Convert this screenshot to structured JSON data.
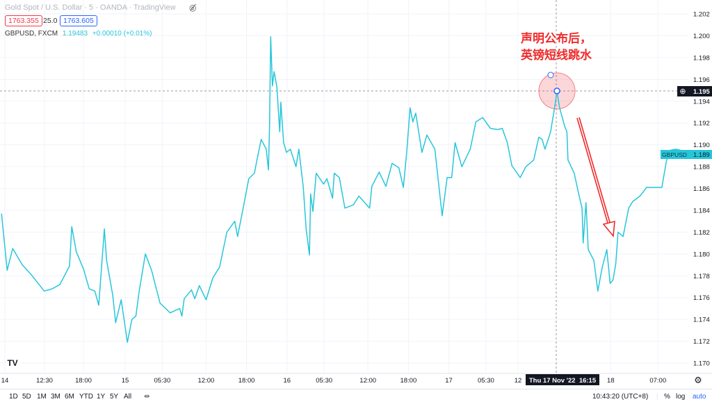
{
  "header": {
    "title": "Gold Spot / U.S. Dollar · 5 · OANDA · TradingView",
    "hide_icon": "eye-crossed-icon",
    "bid": "1763.355",
    "spread": "25.0",
    "ask": "1763.605",
    "symbol": "GBPUSD, FXCM",
    "last": "1.19483",
    "change": "+0.00010 (+0.01%)"
  },
  "annotation": {
    "line1": "声明公布后，",
    "line2": "英镑短线跳水"
  },
  "crosshair": {
    "time_label": "Thu 17 Nov '22  16:15",
    "price_label": "1.195"
  },
  "series_label": {
    "name": "GBPUSD",
    "value": "1.189"
  },
  "colors": {
    "line": "#26c6da",
    "annotation": "#f02a2a",
    "bid": "#f23645",
    "ask": "#2962ff"
  },
  "chart_data": {
    "type": "line",
    "symbol": "GBPUSD",
    "y_ticks": [
      "1.202",
      "1.200",
      "1.198",
      "1.196",
      "1.194",
      "1.192",
      "1.190",
      "1.188",
      "1.186",
      "1.184",
      "1.182",
      "1.180",
      "1.178",
      "1.176",
      "1.174",
      "1.172",
      "1.170"
    ],
    "ylim": [
      1.17,
      1.202
    ],
    "x_ticks": [
      {
        "label": "14",
        "t": "14 00:00"
      },
      {
        "label": "12:30",
        "t": "14 12:30"
      },
      {
        "label": "18:00",
        "t": "14 18:00"
      },
      {
        "label": "15",
        "t": "15 00:00"
      },
      {
        "label": "05:30",
        "t": "15 05:30"
      },
      {
        "label": "12:00",
        "t": "15 12:00"
      },
      {
        "label": "18:00",
        "t": "15 18:00"
      },
      {
        "label": "16",
        "t": "16 00:00"
      },
      {
        "label": "05:30",
        "t": "16 05:30"
      },
      {
        "label": "12:00",
        "t": "16 12:00"
      },
      {
        "label": "18:00",
        "t": "16 18:00"
      },
      {
        "label": "17",
        "t": "17 00:00"
      },
      {
        "label": "05:30",
        "t": "17 05:30"
      },
      {
        "label": "12",
        "t": "17 12:00"
      },
      {
        "label": "18",
        "t": "18 00:00"
      },
      {
        "label": "07:00",
        "t": "18 07:00"
      }
    ],
    "grid": true,
    "points": [
      [
        "14 05:40",
        1.1837
      ],
      [
        "14 06:30",
        1.1785
      ],
      [
        "14 07:20",
        1.1805
      ],
      [
        "14 08:45",
        1.179
      ],
      [
        "14 10:05",
        1.1781
      ],
      [
        "14 12:00",
        1.1766
      ],
      [
        "14 13:10",
        1.1768
      ],
      [
        "14 14:20",
        1.1772
      ],
      [
        "14 15:45",
        1.1789
      ],
      [
        "14 16:05",
        1.1825
      ],
      [
        "14 16:45",
        1.1802
      ],
      [
        "14 17:50",
        1.1786
      ],
      [
        "14 18:40",
        1.1768
      ],
      [
        "14 19:30",
        1.1766
      ],
      [
        "14 20:05",
        1.1753
      ],
      [
        "14 20:55",
        1.1823
      ],
      [
        "14 21:15",
        1.1794
      ],
      [
        "14 22:10",
        1.1762
      ],
      [
        "14 22:35",
        1.1737
      ],
      [
        "14 23:25",
        1.1758
      ],
      [
        "15 00:20",
        1.1719
      ],
      [
        "15 01:00",
        1.174
      ],
      [
        "15 01:35",
        1.1743
      ],
      [
        "15 02:05",
        1.1766
      ],
      [
        "15 03:00",
        1.18
      ],
      [
        "15 03:55",
        1.1785
      ],
      [
        "15 05:10",
        1.1755
      ],
      [
        "15 06:40",
        1.1746
      ],
      [
        "15 08:05",
        1.175
      ],
      [
        "15 08:25",
        1.1743
      ],
      [
        "15 08:45",
        1.1759
      ],
      [
        "15 09:50",
        1.1767
      ],
      [
        "15 10:20",
        1.1759
      ],
      [
        "15 11:00",
        1.1771
      ],
      [
        "15 12:00",
        1.1758
      ],
      [
        "15 13:00",
        1.1778
      ],
      [
        "15 14:00",
        1.1788
      ],
      [
        "15 15:05",
        1.182
      ],
      [
        "15 16:15",
        1.183
      ],
      [
        "15 16:40",
        1.1816
      ],
      [
        "15 17:30",
        1.1842
      ],
      [
        "15 18:20",
        1.1869
      ],
      [
        "15 19:10",
        1.1874
      ],
      [
        "15 19:25",
        1.1882
      ],
      [
        "15 20:10",
        1.1905
      ],
      [
        "15 20:55",
        1.1896
      ],
      [
        "15 21:15",
        1.1877
      ],
      [
        "15 21:25",
        1.1918
      ],
      [
        "15 21:35",
        1.1999
      ],
      [
        "15 21:50",
        1.1954
      ],
      [
        "15 22:05",
        1.1967
      ],
      [
        "15 22:30",
        1.1953
      ],
      [
        "15 22:55",
        1.1912
      ],
      [
        "15 23:05",
        1.1939
      ],
      [
        "15 23:30",
        1.1902
      ],
      [
        "15 23:55",
        1.1893
      ],
      [
        "16 00:30",
        1.1896
      ],
      [
        "16 01:20",
        1.188
      ],
      [
        "16 01:45",
        1.1896
      ],
      [
        "16 02:25",
        1.1861
      ],
      [
        "16 02:50",
        1.1823
      ],
      [
        "16 03:20",
        1.1799
      ],
      [
        "16 03:30",
        1.1855
      ],
      [
        "16 03:50",
        1.1839
      ],
      [
        "16 04:20",
        1.1874
      ],
      [
        "16 05:25",
        1.1864
      ],
      [
        "16 05:55",
        1.1869
      ],
      [
        "16 06:45",
        1.1851
      ],
      [
        "16 07:00",
        1.1874
      ],
      [
        "16 07:45",
        1.187
      ],
      [
        "16 08:35",
        1.1842
      ],
      [
        "16 09:50",
        1.1845
      ],
      [
        "16 10:40",
        1.1853
      ],
      [
        "16 12:15",
        1.1842
      ],
      [
        "16 12:35",
        1.1862
      ],
      [
        "16 13:40",
        1.1875
      ],
      [
        "16 14:40",
        1.1862
      ],
      [
        "16 15:35",
        1.1883
      ],
      [
        "16 16:35",
        1.1879
      ],
      [
        "16 17:15",
        1.1861
      ],
      [
        "16 17:45",
        1.1893
      ],
      [
        "16 18:15",
        1.1934
      ],
      [
        "16 18:40",
        1.1921
      ],
      [
        "16 19:05",
        1.1929
      ],
      [
        "16 20:00",
        1.1893
      ],
      [
        "16 20:45",
        1.1909
      ],
      [
        "16 21:55",
        1.1896
      ],
      [
        "16 23:00",
        1.1835
      ],
      [
        "16 23:45",
        1.187
      ],
      [
        "17 00:25",
        1.187
      ],
      [
        "17 00:55",
        1.1902
      ],
      [
        "17 01:55",
        1.188
      ],
      [
        "17 03:10",
        1.1896
      ],
      [
        "17 04:00",
        1.1921
      ],
      [
        "17 05:00",
        1.1925
      ],
      [
        "17 06:10",
        1.1915
      ],
      [
        "17 07:15",
        1.1914
      ],
      [
        "17 07:55",
        1.1915
      ],
      [
        "17 08:40",
        1.1902
      ],
      [
        "17 09:20",
        1.1881
      ],
      [
        "17 10:35",
        1.187
      ],
      [
        "17 11:25",
        1.188
      ],
      [
        "17 12:35",
        1.1886
      ],
      [
        "17 13:20",
        1.1907
      ],
      [
        "17 13:50",
        1.1905
      ],
      [
        "17 14:15",
        1.1896
      ],
      [
        "17 15:05",
        1.1912
      ],
      [
        "17 15:50",
        1.194
      ],
      [
        "17 16:00",
        1.195
      ],
      [
        "17 16:25",
        1.1934
      ],
      [
        "17 17:10",
        1.1917
      ],
      [
        "17 17:30",
        1.1912
      ],
      [
        "17 17:40",
        1.1886
      ],
      [
        "17 18:35",
        1.1874
      ],
      [
        "17 19:15",
        1.1855
      ],
      [
        "17 19:45",
        1.1842
      ],
      [
        "17 19:55",
        1.181
      ],
      [
        "17 20:20",
        1.1847
      ],
      [
        "17 20:40",
        1.1804
      ],
      [
        "17 21:30",
        1.1794
      ],
      [
        "17 22:05",
        1.1766
      ],
      [
        "17 22:45",
        1.1788
      ],
      [
        "17 23:25",
        1.1804
      ],
      [
        "17 23:55",
        1.1773
      ],
      [
        "18 00:20",
        1.1776
      ],
      [
        "18 00:45",
        1.1791
      ],
      [
        "18 01:05",
        1.182
      ],
      [
        "18 01:50",
        1.1816
      ],
      [
        "18 02:40",
        1.1842
      ],
      [
        "18 03:15",
        1.1848
      ],
      [
        "18 04:20",
        1.1853
      ],
      [
        "18 05:20",
        1.1861
      ],
      [
        "18 06:35",
        1.1861
      ],
      [
        "18 07:35",
        1.1861
      ],
      [
        "18 08:15",
        1.1885
      ],
      [
        "18 08:50",
        1.1895
      ],
      [
        "18 09:40",
        1.1896
      ],
      [
        "18 11:00",
        1.1894
      ]
    ]
  },
  "toolbar": {
    "ranges": [
      "1D",
      "5D",
      "1M",
      "3M",
      "6M",
      "YTD",
      "1Y",
      "5Y",
      "All"
    ],
    "calendar_icon": "calendar-range-icon",
    "clock": "10:43:20 (UTC+8)",
    "percent": "%",
    "log": "log",
    "auto": "auto",
    "settings_icon": "gear-icon"
  }
}
